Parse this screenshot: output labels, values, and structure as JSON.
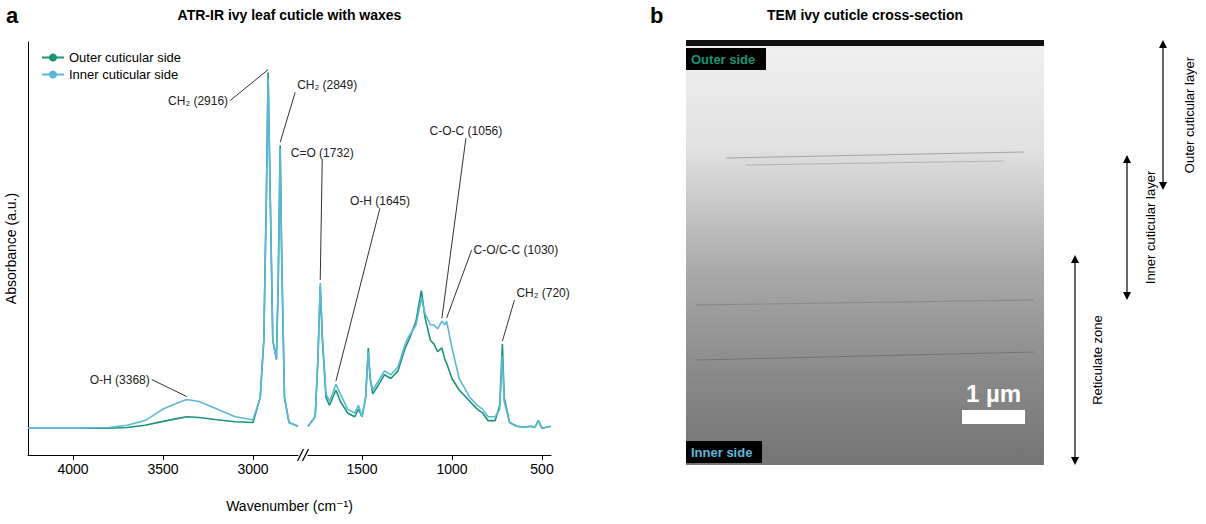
{
  "chart_data": {
    "panel": "a",
    "type": "line",
    "title": "ATR-IR ivy leaf cuticle with waxes",
    "xlabel": "Wavenumber (cm⁻¹)",
    "ylabel": "Absorbance (a.u.)",
    "x": [
      4250,
      4000,
      3800,
      3700,
      3600,
      3500,
      3400,
      3368,
      3300,
      3200,
      3100,
      3000,
      2960,
      2940,
      2925,
      2916,
      2905,
      2890,
      2870,
      2860,
      2849,
      2840,
      2825,
      2800,
      2750,
      1800,
      1760,
      1745,
      1732,
      1720,
      1700,
      1680,
      1645,
      1620,
      1580,
      1540,
      1520,
      1500,
      1480,
      1465,
      1455,
      1440,
      1400,
      1375,
      1340,
      1300,
      1260,
      1240,
      1200,
      1170,
      1150,
      1120,
      1100,
      1080,
      1056,
      1040,
      1030,
      1000,
      960,
      900,
      860,
      830,
      800,
      760,
      735,
      720,
      710,
      680,
      640,
      600,
      560,
      540,
      520,
      500,
      450
    ],
    "series": [
      {
        "name": "Outer cuticular side",
        "color": "#1a9475",
        "values": [
          0.07,
          0.07,
          0.07,
          0.072,
          0.078,
          0.088,
          0.097,
          0.1,
          0.098,
          0.092,
          0.087,
          0.085,
          0.15,
          0.3,
          0.7,
          1.0,
          0.7,
          0.3,
          0.25,
          0.45,
          0.81,
          0.5,
          0.15,
          0.085,
          0.075,
          0.075,
          0.1,
          0.25,
          0.44,
          0.3,
          0.15,
          0.13,
          0.17,
          0.14,
          0.11,
          0.1,
          0.12,
          0.1,
          0.15,
          0.28,
          0.2,
          0.16,
          0.19,
          0.21,
          0.2,
          0.22,
          0.28,
          0.3,
          0.35,
          0.43,
          0.36,
          0.3,
          0.29,
          0.27,
          0.28,
          0.25,
          0.24,
          0.2,
          0.17,
          0.14,
          0.12,
          0.11,
          0.09,
          0.09,
          0.13,
          0.29,
          0.15,
          0.085,
          0.075,
          0.073,
          0.075,
          0.072,
          0.09,
          0.07,
          0.075
        ]
      },
      {
        "name": "Inner cuticular side",
        "color": "#5bb8d9",
        "values": [
          0.07,
          0.07,
          0.072,
          0.078,
          0.09,
          0.12,
          0.14,
          0.145,
          0.14,
          0.12,
          0.1,
          0.092,
          0.15,
          0.3,
          0.69,
          0.985,
          0.69,
          0.3,
          0.25,
          0.45,
          0.8,
          0.5,
          0.15,
          0.085,
          0.075,
          0.075,
          0.1,
          0.25,
          0.45,
          0.31,
          0.16,
          0.14,
          0.185,
          0.16,
          0.12,
          0.11,
          0.13,
          0.1,
          0.15,
          0.27,
          0.2,
          0.17,
          0.2,
          0.22,
          0.21,
          0.23,
          0.29,
          0.31,
          0.34,
          0.41,
          0.37,
          0.34,
          0.34,
          0.33,
          0.35,
          0.34,
          0.35,
          0.28,
          0.2,
          0.15,
          0.13,
          0.12,
          0.1,
          0.1,
          0.12,
          0.26,
          0.14,
          0.085,
          0.075,
          0.073,
          0.075,
          0.072,
          0.09,
          0.07,
          0.075
        ]
      }
    ],
    "xlim": [
      4250,
      450
    ],
    "xbreak": [
      2750,
      1800
    ],
    "xticks": [
      4000,
      3500,
      3000,
      1500,
      1000,
      500
    ],
    "ylim": [
      0,
      1.08
    ],
    "yticks": [],
    "tick_labels": "x",
    "grid": false,
    "legend": "upper left",
    "annotations": [
      {
        "text": "O-H (3368)",
        "x": 3368
      },
      {
        "text": "CH₂ (2916)",
        "x": 2916
      },
      {
        "text": "CH₂ (2849)",
        "x": 2849
      },
      {
        "text": "C=O (1732)",
        "x": 1732
      },
      {
        "text": "O-H (1645)",
        "x": 1645
      },
      {
        "text": "C-O-C (1056)",
        "x": 1056
      },
      {
        "text": "C-O/C-C (1030)",
        "x": 1030
      },
      {
        "text": "CH₂ (720)",
        "x": 720
      }
    ]
  },
  "micrograph": {
    "panel": "b",
    "title": "TEM ivy cuticle cross-section",
    "corner_labels": [
      {
        "text": "Outer side",
        "color": "#1a9475"
      },
      {
        "text": "Inner side",
        "color": "#5bb8d9"
      }
    ],
    "scale_bar": "1 µm",
    "zones": [
      "Outer cuticular layer",
      "Inner cuticular layer",
      "Reticulate zone"
    ]
  }
}
